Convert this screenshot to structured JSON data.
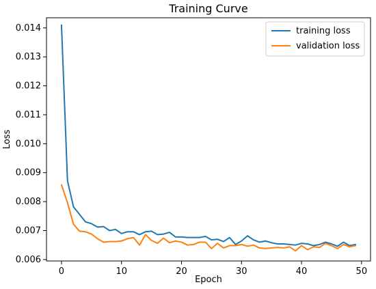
{
  "chart_data": {
    "type": "line",
    "title": "Training Curve",
    "xlabel": "Epoch",
    "ylabel": "Loss",
    "xlim": [
      -2.5,
      51.5
    ],
    "ylim": [
      0.00595,
      0.01435
    ],
    "x_ticks": [
      0,
      10,
      20,
      30,
      40,
      50
    ],
    "x_tick_labels": [
      "0",
      "10",
      "20",
      "30",
      "40",
      "50"
    ],
    "y_ticks": [
      0.006,
      0.007,
      0.008,
      0.009,
      0.01,
      0.011,
      0.012,
      0.013,
      0.014
    ],
    "y_tick_labels": [
      "0.006",
      "0.007",
      "0.008",
      "0.009",
      "0.010",
      "0.011",
      "0.012",
      "0.013",
      "0.014"
    ],
    "grid": false,
    "legend_position": "top-right",
    "x": [
      0,
      1,
      2,
      3,
      4,
      5,
      6,
      7,
      8,
      9,
      10,
      11,
      12,
      13,
      14,
      15,
      16,
      17,
      18,
      19,
      20,
      21,
      22,
      23,
      24,
      25,
      26,
      27,
      28,
      29,
      30,
      31,
      32,
      33,
      34,
      35,
      36,
      37,
      38,
      39,
      40,
      41,
      42,
      43,
      44,
      45,
      46,
      47,
      48,
      49
    ],
    "series": [
      {
        "name": "training loss",
        "color": "#1f77b4",
        "values": [
          0.0141,
          0.00872,
          0.00782,
          0.00756,
          0.0073,
          0.00724,
          0.00712,
          0.00714,
          0.007,
          0.00704,
          0.0069,
          0.00696,
          0.00696,
          0.00686,
          0.00696,
          0.00698,
          0.00686,
          0.00688,
          0.00694,
          0.00678,
          0.00678,
          0.00676,
          0.00676,
          0.00676,
          0.0068,
          0.00668,
          0.0067,
          0.00662,
          0.00676,
          0.00652,
          0.00664,
          0.00682,
          0.00668,
          0.0066,
          0.00664,
          0.00658,
          0.00654,
          0.00654,
          0.00652,
          0.0065,
          0.00656,
          0.00654,
          0.00648,
          0.00652,
          0.0066,
          0.00654,
          0.00646,
          0.0066,
          0.00648,
          0.00652
        ]
      },
      {
        "name": "validation loss",
        "color": "#ff7f0e",
        "values": [
          0.00858,
          0.00796,
          0.00722,
          0.00698,
          0.00696,
          0.00688,
          0.00672,
          0.0066,
          0.00662,
          0.00662,
          0.00664,
          0.00672,
          0.00676,
          0.0065,
          0.00686,
          0.00666,
          0.00656,
          0.00674,
          0.00658,
          0.00664,
          0.0066,
          0.0065,
          0.00652,
          0.0066,
          0.0066,
          0.00638,
          0.00656,
          0.0064,
          0.00648,
          0.00648,
          0.00652,
          0.00646,
          0.0065,
          0.0064,
          0.00638,
          0.0064,
          0.00642,
          0.0064,
          0.00644,
          0.0063,
          0.00648,
          0.00634,
          0.00644,
          0.00642,
          0.00656,
          0.00648,
          0.00638,
          0.00652,
          0.00644,
          0.00648
        ]
      }
    ]
  }
}
